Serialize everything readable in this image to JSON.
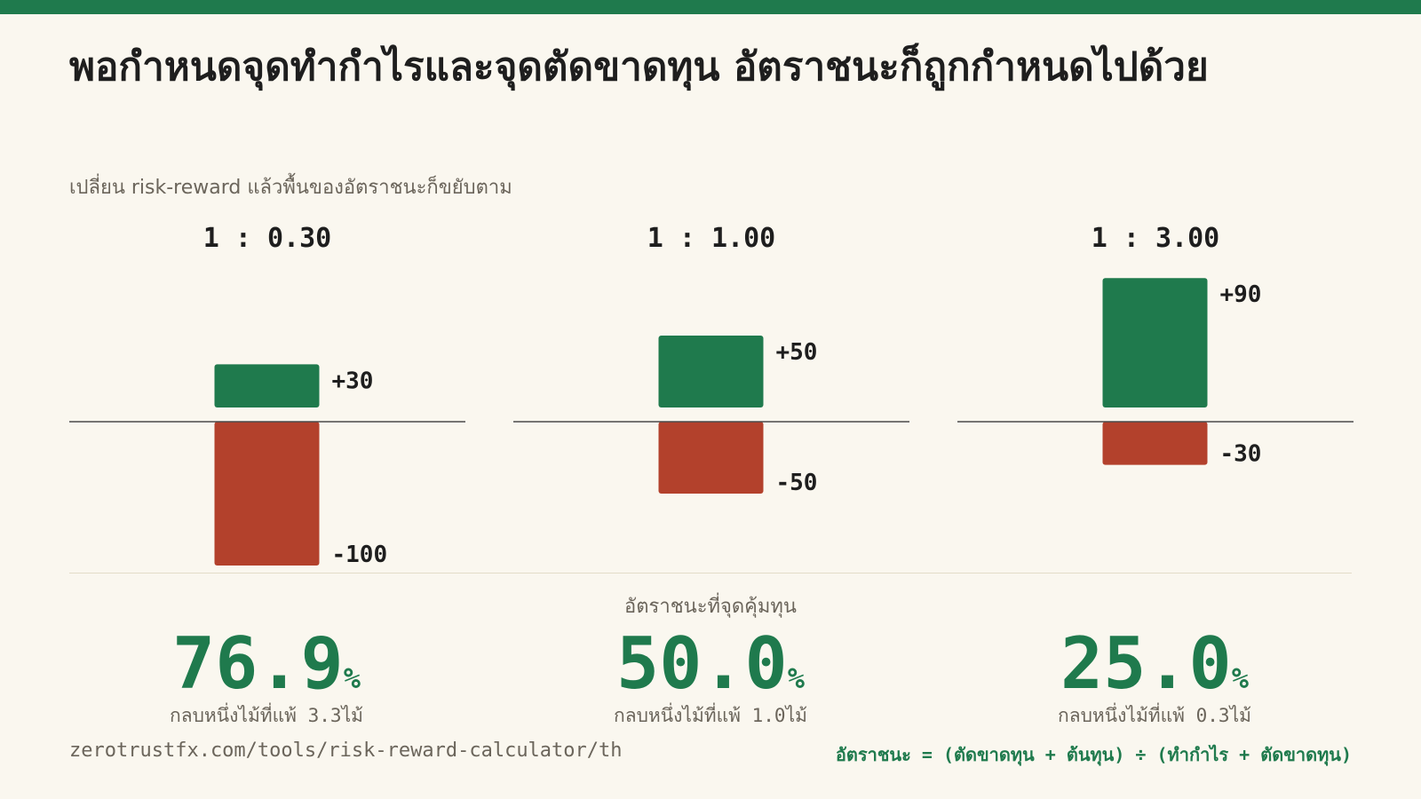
{
  "title": "พอกำหนดจุดทำกำไรและจุดตัดขาดทุน อัตราชนะก็ถูกกำหนดไปด้วย",
  "subtitle": "เปลี่ยน risk-reward แล้วพื้นของอัตราชนะก็ขยับตาม",
  "colors": {
    "accent": "#1f7a4d",
    "profit": "#1f7a4d",
    "loss": "#b3412c",
    "background": "#faf7ef",
    "top_bar": "#1f7a4d"
  },
  "chart_data": {
    "type": "bar",
    "categories": [
      "1 : 0.30",
      "1 : 1.00",
      "1 : 3.00"
    ],
    "series": [
      {
        "values": [
          30,
          50,
          90
        ],
        "labels": [
          "+30",
          "+50",
          "+90"
        ]
      },
      {
        "values": [
          -100,
          -50,
          -30
        ],
        "labels": [
          "-100",
          "-50",
          "-30"
        ]
      }
    ],
    "ylim": [
      -100,
      100
    ]
  },
  "breakeven": {
    "heading": "อัตราชนะที่จุดคุ้มทุน",
    "unit": "%",
    "items": [
      {
        "value": "76.9",
        "note": "กลบหนึ่งไม้ที่แพ้ 3.3ไม้"
      },
      {
        "value": "50.0",
        "note": "กลบหนึ่งไม้ที่แพ้ 1.0ไม้"
      },
      {
        "value": "25.0",
        "note": "กลบหนึ่งไม้ที่แพ้ 0.3ไม้"
      }
    ]
  },
  "footer": {
    "url": "zerotrustfx.com/tools/risk-reward-calculator/th",
    "formula": "อัตราชนะ = (ตัดขาดทุน + ต้นทุน) ÷ (ทำกำไร + ตัดขาดทุน)"
  }
}
